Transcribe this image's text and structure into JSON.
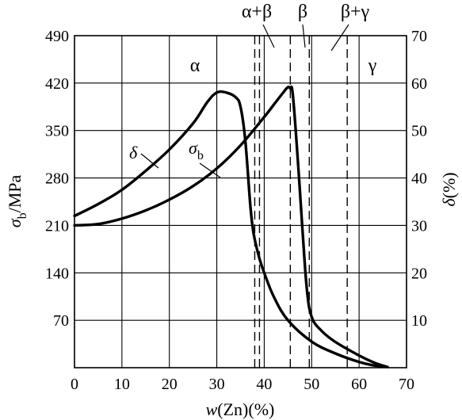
{
  "chart_data": {
    "type": "line",
    "xlabel": {
      "prefix": "w",
      "rest": "(Zn)(%)"
    },
    "ylabel_left": {
      "main": "σ",
      "sub": "b",
      "unit": "/MPa"
    },
    "ylabel_right": {
      "main": "δ",
      "unit": "(%)"
    },
    "xlim": [
      0,
      70
    ],
    "ylim_left": [
      0,
      490
    ],
    "ylim_right": [
      0,
      70
    ],
    "x_ticks": [
      "0",
      "10",
      "20",
      "30",
      "40",
      "50",
      "60",
      "70"
    ],
    "y_left_ticks": [
      "70",
      "140",
      "210",
      "280",
      "350",
      "420",
      "490"
    ],
    "y_right_ticks": [
      "10",
      "20",
      "30",
      "40",
      "50",
      "60",
      "70"
    ],
    "grid": true,
    "phase_boundaries": [
      38,
      39,
      45.5,
      49.5,
      57.5
    ],
    "regions": [
      "α",
      "α+β",
      "β",
      "β+γ",
      "γ"
    ],
    "series": [
      {
        "name": "σb",
        "axis": "left",
        "x": [
          0,
          5,
          10,
          15,
          20,
          25,
          30,
          35,
          40,
          42,
          44,
          45,
          45.5,
          46,
          47,
          48,
          49,
          50,
          52,
          55,
          60,
          63,
          65,
          66
        ],
        "y": [
          210,
          212,
          220,
          232,
          248,
          268,
          294,
          328,
          370,
          388,
          406,
          414,
          412,
          405,
          315,
          210,
          115,
          75,
          55,
          38,
          18,
          8,
          3,
          1
        ]
      },
      {
        "name": "δ",
        "axis": "right",
        "x": [
          0,
          5,
          10,
          15,
          20,
          25,
          28,
          30,
          32,
          34,
          35,
          36,
          37,
          37.5,
          38,
          39,
          40,
          42,
          45,
          50,
          55,
          60,
          63,
          65
        ],
        "y": [
          32,
          34.5,
          37.5,
          41.5,
          46,
          51.5,
          56,
          58,
          58,
          57,
          55,
          48,
          35,
          30,
          27,
          23,
          20,
          15,
          10,
          5.5,
          3,
          1.2,
          0.5,
          0.3
        ]
      }
    ],
    "annotations": {
      "delta_label": "δ",
      "sigma_label_main": "σ",
      "sigma_label_sub": "b"
    }
  }
}
